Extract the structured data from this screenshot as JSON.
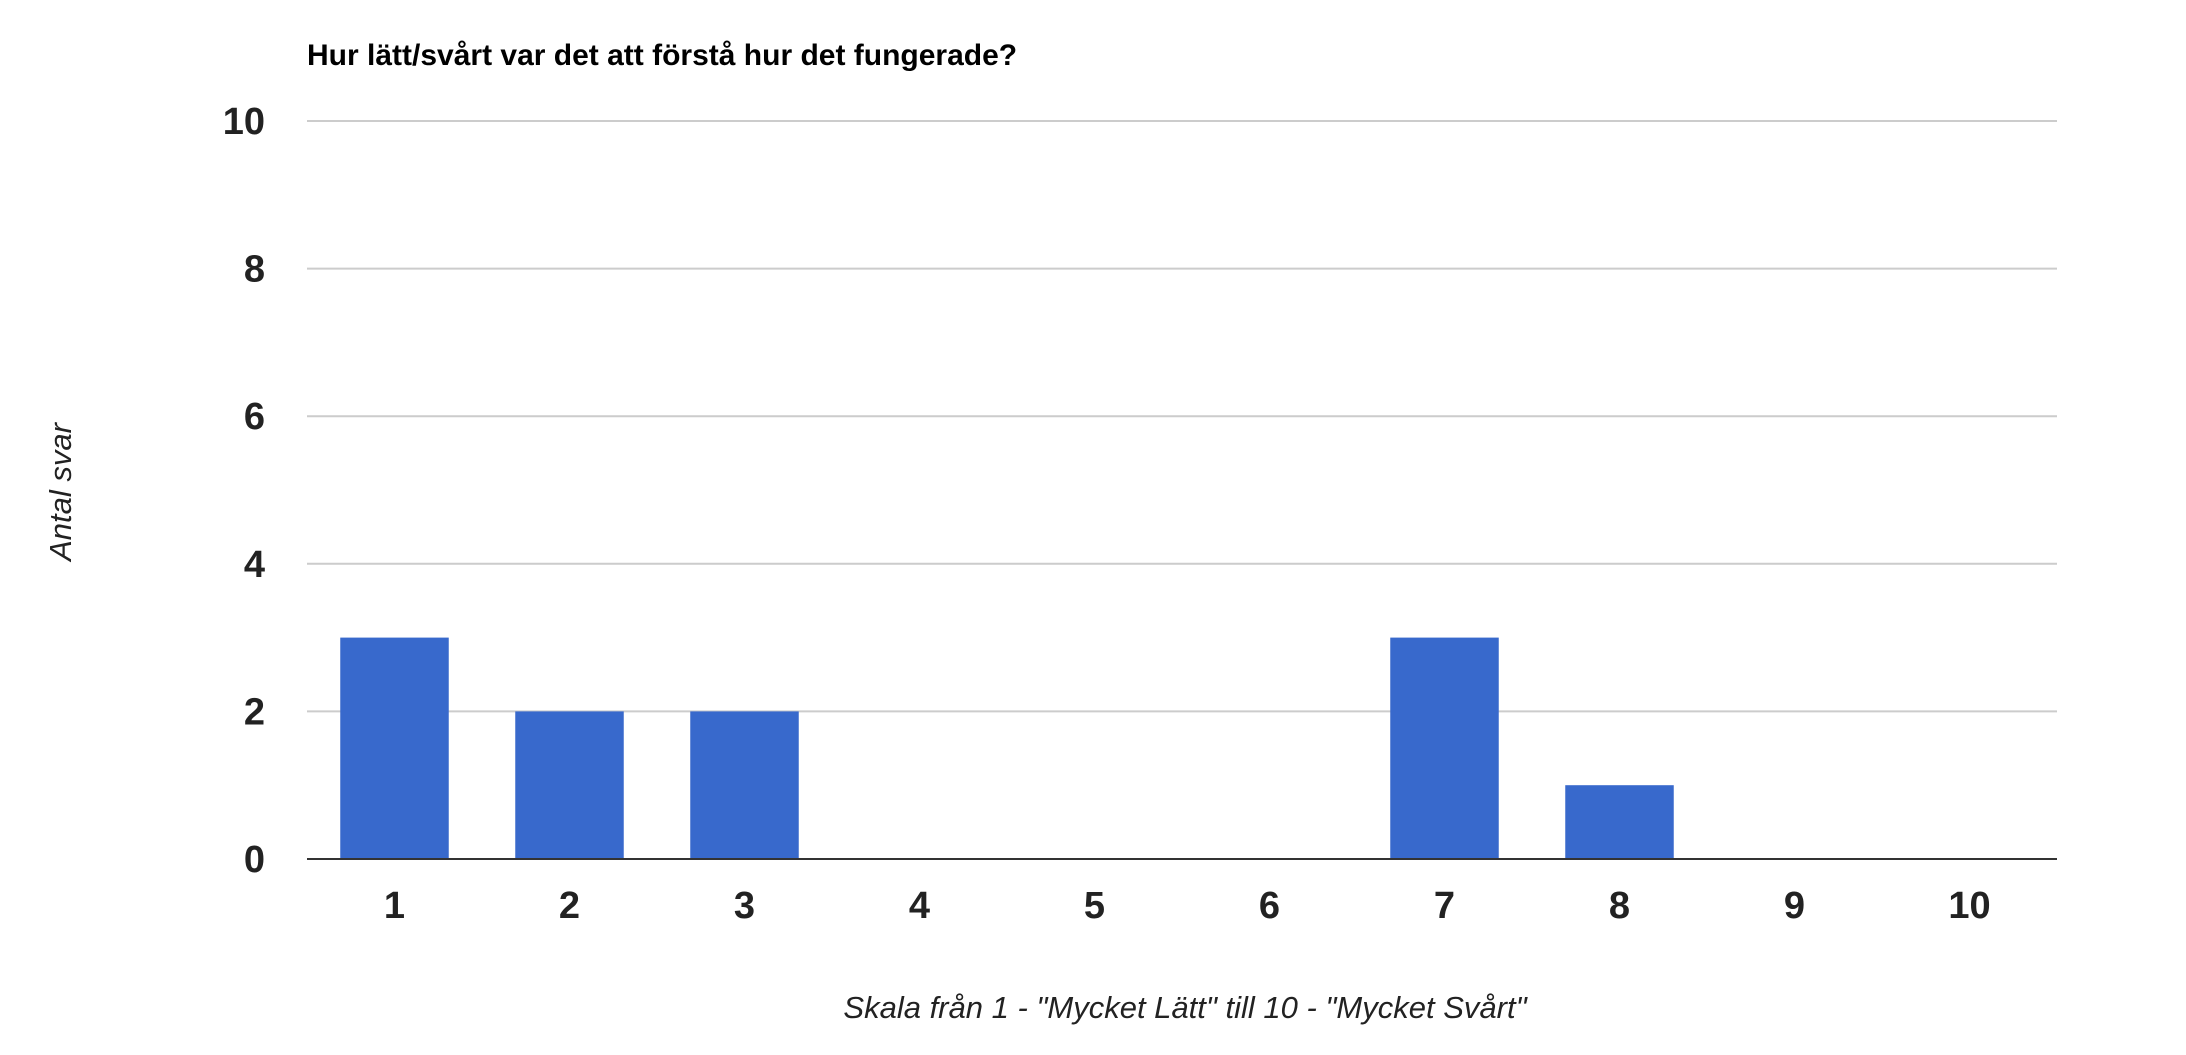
{
  "chart_data": {
    "type": "bar",
    "title": "Hur lätt/svårt var det att förstå hur det fungerade?",
    "xlabel": "Skala från 1 - \"Mycket Lätt\" till 10 - \"Mycket Svårt\"",
    "ylabel": "Antal svar",
    "categories": [
      "1",
      "2",
      "3",
      "4",
      "5",
      "6",
      "7",
      "8",
      "9",
      "10"
    ],
    "values": [
      3,
      2,
      2,
      0,
      0,
      0,
      3,
      1,
      0,
      0
    ],
    "ylim": [
      0,
      10
    ],
    "yticks": [
      "0",
      "2",
      "4",
      "6",
      "8",
      "10"
    ],
    "grid": true,
    "legend": "none",
    "colors": {
      "bar": "#3869cc",
      "grid": "#cccccc",
      "baseline": "#333333"
    }
  }
}
